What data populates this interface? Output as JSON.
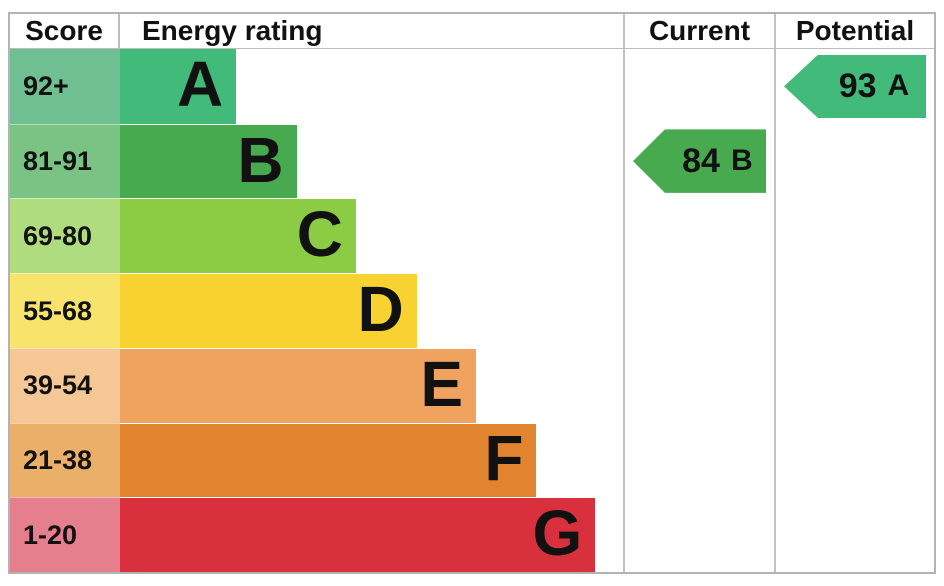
{
  "header": {
    "score": "Score",
    "energy_rating": "Energy rating",
    "current": "Current",
    "potential": "Potential"
  },
  "bands": [
    {
      "letter": "A",
      "range": "92+",
      "bar_color": "#42bb7a",
      "tint_color": "#6fbf92",
      "width_pct": 23.1
    },
    {
      "letter": "B",
      "range": "81-91",
      "bar_color": "#47aa4e",
      "tint_color": "#7bc384",
      "width_pct": 35.1
    },
    {
      "letter": "C",
      "range": "69-80",
      "bar_color": "#8ccc44",
      "tint_color": "#aedc7e",
      "width_pct": 46.9
    },
    {
      "letter": "D",
      "range": "55-68",
      "bar_color": "#f7d231",
      "tint_color": "#f8e36c",
      "width_pct": 59.0
    },
    {
      "letter": "E",
      "range": "39-54",
      "bar_color": "#efa35e",
      "tint_color": "#f4c795",
      "width_pct": 70.8
    },
    {
      "letter": "F",
      "range": "21-38",
      "bar_color": "#e0842f",
      "tint_color": "#eab069",
      "width_pct": 82.8
    },
    {
      "letter": "G",
      "range": "1-20",
      "bar_color": "#d9303d",
      "tint_color": "#e57f8e",
      "width_pct": 94.5
    }
  ],
  "current": {
    "label": "84",
    "letter": "B",
    "band_index": 1,
    "color": "#47aa4e"
  },
  "potential": {
    "label": "93",
    "letter": "A",
    "band_index": 0,
    "color": "#42bb7a"
  },
  "chart_data": {
    "type": "bar",
    "title": "Energy rating",
    "columns": [
      "Score",
      "Energy rating",
      "Current",
      "Potential"
    ],
    "categories": [
      "A",
      "B",
      "C",
      "D",
      "E",
      "F",
      "G"
    ],
    "score_ranges": [
      "92+",
      "81-91",
      "69-80",
      "55-68",
      "39-54",
      "21-38",
      "1-20"
    ],
    "values": [
      23.1,
      35.1,
      46.9,
      59.0,
      70.8,
      82.8,
      94.5
    ],
    "bar_colors": [
      "#42bb7a",
      "#47aa4e",
      "#8ccc44",
      "#f7d231",
      "#efa35e",
      "#e0842f",
      "#d9303d"
    ],
    "current": {
      "score": 84,
      "rating": "B"
    },
    "potential": {
      "score": 93,
      "rating": "A"
    },
    "legend_position": "none",
    "grid": false
  }
}
